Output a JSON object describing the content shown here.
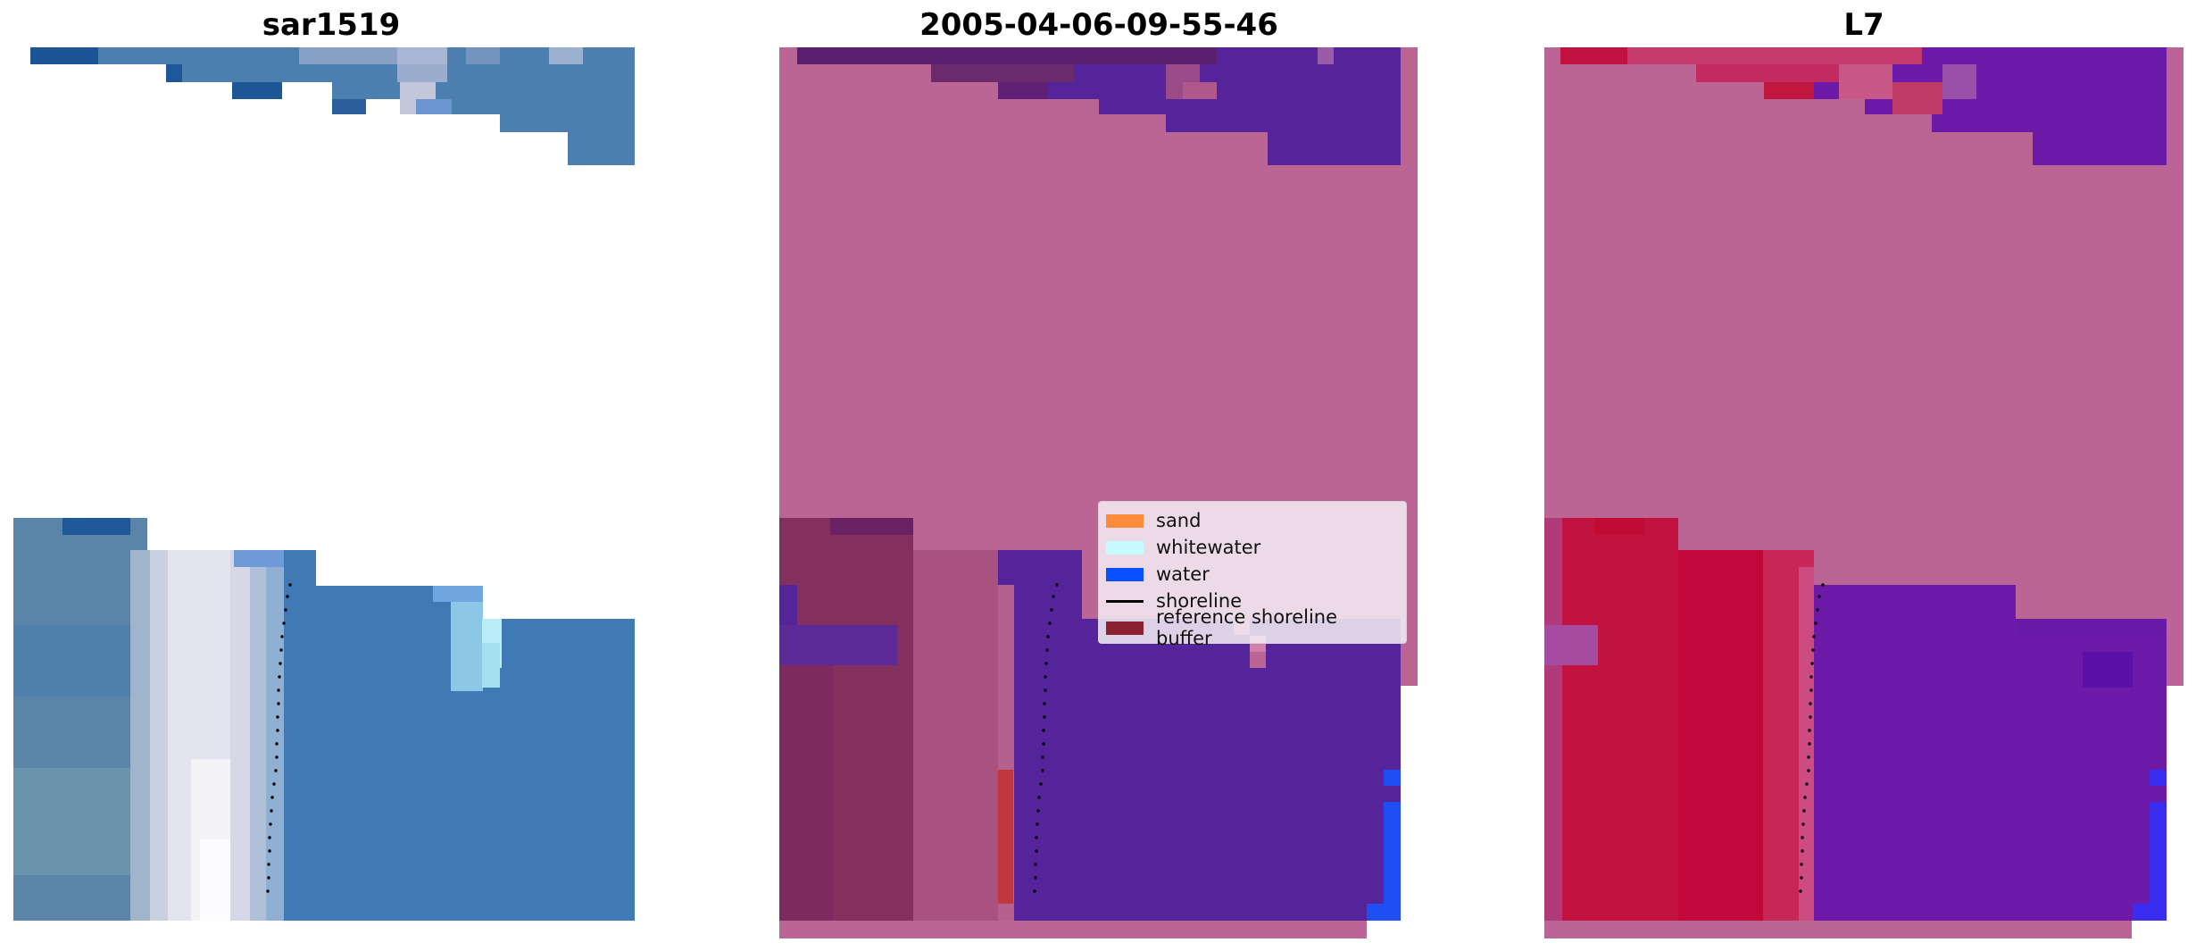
{
  "titles": {
    "left": "sar1519",
    "middle": "2005-04-06-09-55-46",
    "right": "L7"
  },
  "legend": {
    "items": [
      {
        "label": "sand",
        "color": "#ff8c3a",
        "kind": "patch"
      },
      {
        "label": "whitewater",
        "color": "#c6fbff",
        "kind": "patch"
      },
      {
        "label": "water",
        "color": "#0a4fff",
        "kind": "patch"
      },
      {
        "label": "shoreline",
        "color": "#000000",
        "kind": "line"
      },
      {
        "label": "reference shoreline buffer",
        "color": "#8b2232",
        "kind": "patch"
      }
    ]
  },
  "colors": {
    "rgb_sea": "#3f7ab4",
    "rgb_surf": "#e4e4ee",
    "rgb_land": "#6b86a0",
    "class_land": "#bb6595",
    "class_sea": "#55239a",
    "class_surf_zone": "#84305e",
    "class_buffer": "#c0383e",
    "class_water": "#1f4ff2",
    "ndwi_land": "#c2123f",
    "ndwi_sea": "#6e1aa8",
    "ndwi_water": "#3a2cf0"
  }
}
